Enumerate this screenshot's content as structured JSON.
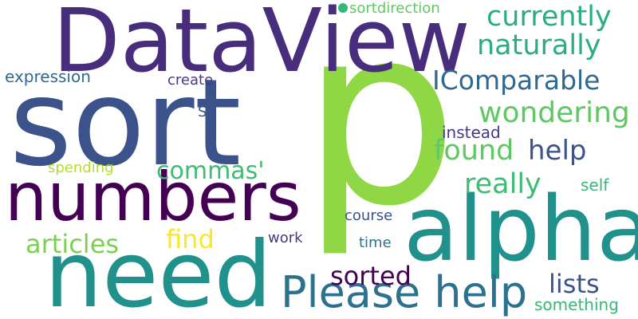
{
  "words": [
    {
      "text": "p",
      "color": "#8fd744"
    },
    {
      "text": "DataView",
      "color": "#472d7b"
    },
    {
      "text": "sort",
      "color": "#3b528b"
    },
    {
      "text": "numbers",
      "color": "#440154"
    },
    {
      "text": "need",
      "color": "#21918c"
    },
    {
      "text": "alpha",
      "color": "#21918c"
    },
    {
      "text": "Please help",
      "color": "#2c728e"
    },
    {
      "text": "IComparable",
      "color": "#31688e"
    },
    {
      "text": "currently",
      "color": "#28ae80"
    },
    {
      "text": "naturally",
      "color": "#28ae80"
    },
    {
      "text": "wondering",
      "color": "#5ec962"
    },
    {
      "text": "found",
      "color": "#5ec962"
    },
    {
      "text": "help",
      "color": "#3b528b"
    },
    {
      "text": "commas'",
      "color": "#3fbc73"
    },
    {
      "text": "really",
      "color": "#3fbc73"
    },
    {
      "text": "articles",
      "color": "#7ad151"
    },
    {
      "text": "find",
      "color": "#fde725"
    },
    {
      "text": "sorted",
      "color": "#440154"
    },
    {
      "text": "lists",
      "color": "#3b528b"
    },
    {
      "text": "sortdirection",
      "color": "#5ec962"
    },
    {
      "text": "expression",
      "color": "#31688e"
    },
    {
      "text": "create",
      "color": "#443983"
    },
    {
      "text": "S",
      "color": "#3b528b"
    },
    {
      "text": "instead",
      "color": "#443983"
    },
    {
      "text": "spending",
      "color": "#b5de2b"
    },
    {
      "text": "self",
      "color": "#35b779"
    },
    {
      "text": "course",
      "color": "#3b528b"
    },
    {
      "text": "work",
      "color": "#443983"
    },
    {
      "text": "time",
      "color": "#2c728e"
    },
    {
      "text": "something",
      "color": "#35b779"
    },
    {
      "text": "",
      "color": "#35b779"
    }
  ]
}
